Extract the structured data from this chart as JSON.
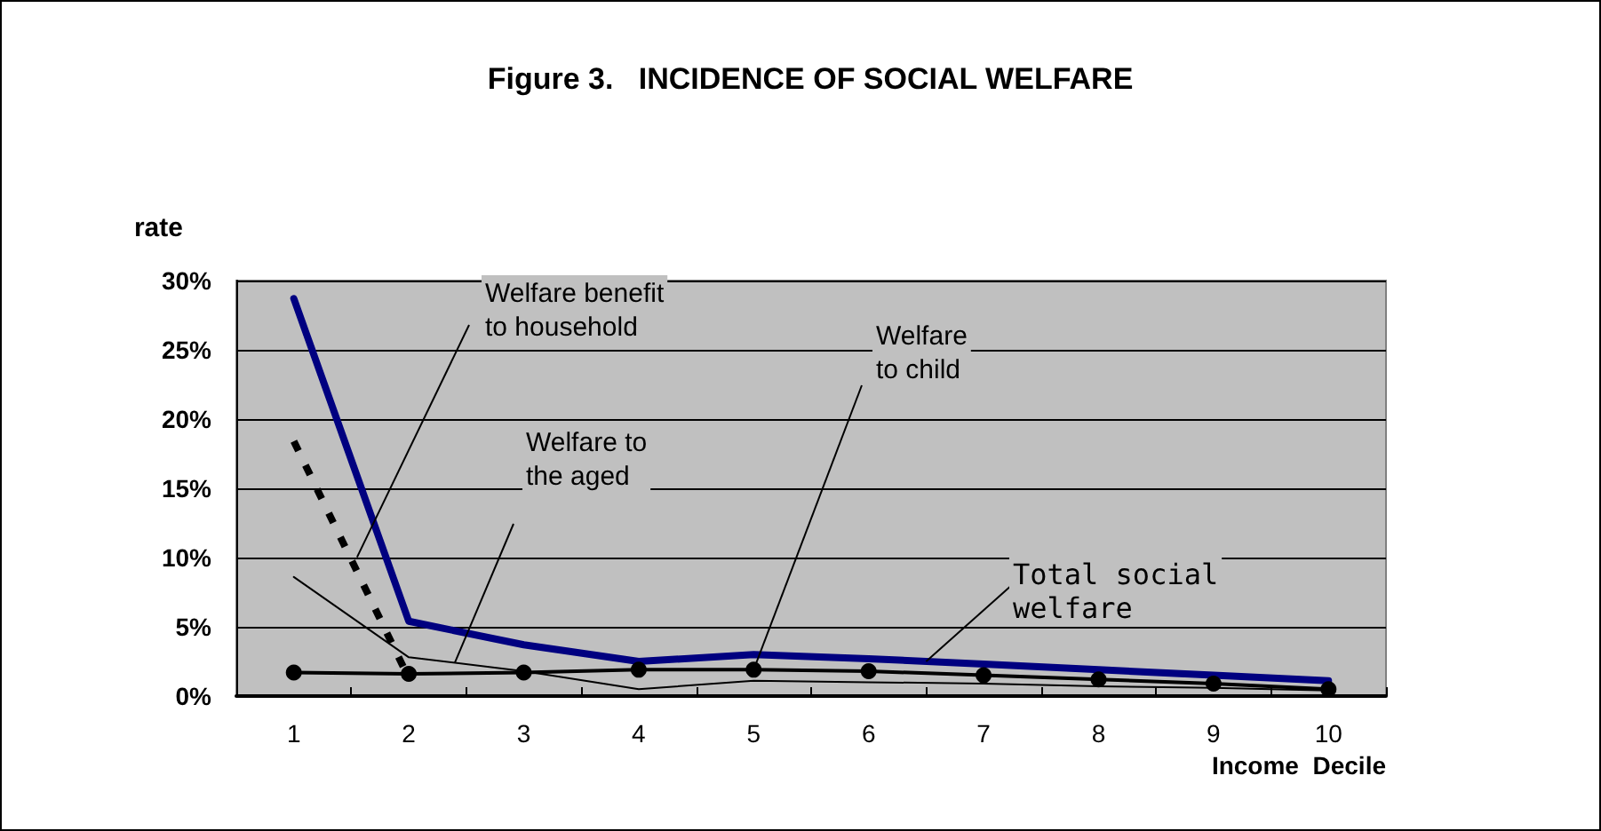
{
  "chart_data": {
    "type": "line",
    "title": "Figure 3.   INCIDENCE OF SOCIAL WELFARE",
    "ylabel": "rate",
    "xlabel": "Income  Decile",
    "categories": [
      "1",
      "2",
      "3",
      "4",
      "5",
      "6",
      "7",
      "8",
      "9",
      "10"
    ],
    "ylim": [
      0,
      30
    ],
    "yticks": [
      {
        "value": 0,
        "label": "0%"
      },
      {
        "value": 5,
        "label": "5%"
      },
      {
        "value": 10,
        "label": "10%"
      },
      {
        "value": 15,
        "label": "15%"
      },
      {
        "value": 20,
        "label": "20%"
      },
      {
        "value": 25,
        "label": "25%"
      },
      {
        "value": 30,
        "label": "30%"
      }
    ],
    "grid": "y",
    "legend": false,
    "marker": "none",
    "series": [
      {
        "name": "Welfare benefit to household",
        "color": "#000000",
        "line_style": "dashed",
        "values": [
          18.4,
          1.3,
          null,
          null,
          null,
          null,
          null,
          null,
          null,
          null
        ]
      },
      {
        "name": "Welfare to the aged",
        "color": "#000000",
        "values": [
          8.6,
          2.8,
          1.8,
          0.5,
          1.1,
          1.0,
          0.9,
          0.7,
          0.6,
          0.4
        ]
      },
      {
        "name": "Welfare to child",
        "color": "#000000",
        "marker": "circle",
        "values": [
          1.7,
          1.6,
          1.7,
          1.9,
          1.9,
          1.8,
          1.5,
          1.2,
          0.9,
          0.5
        ]
      },
      {
        "name": "Total social welfare",
        "color": "#000080",
        "values": [
          28.7,
          5.4,
          3.7,
          2.5,
          3.0,
          2.7,
          2.3,
          1.9,
          1.5,
          1.1
        ]
      }
    ]
  }
}
